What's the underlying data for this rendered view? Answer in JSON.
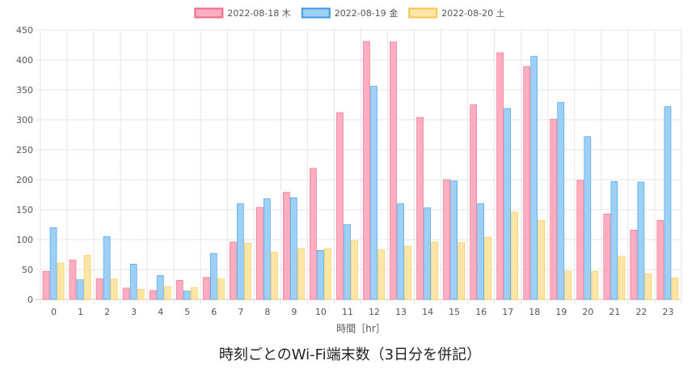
{
  "caption": "時刻ごとのWi-Fi端末数（3日分を併記）",
  "chart_data": {
    "type": "bar",
    "title": "",
    "xlabel": "時間［hr］",
    "ylabel": "",
    "ylim": [
      0,
      450
    ],
    "yticks": [
      0,
      50,
      100,
      150,
      200,
      250,
      300,
      350,
      400,
      450
    ],
    "grid": true,
    "legend_position": "top-center",
    "categories": [
      "0",
      "1",
      "2",
      "3",
      "4",
      "5",
      "6",
      "7",
      "8",
      "9",
      "10",
      "11",
      "12",
      "13",
      "14",
      "15",
      "16",
      "17",
      "18",
      "19",
      "20",
      "21",
      "22",
      "23"
    ],
    "series": [
      {
        "name": "2022-08-18 木",
        "fill": "#ffadc1",
        "stroke": "#f06a8a",
        "values": [
          47,
          66,
          35,
          19,
          15,
          32,
          37,
          96,
          154,
          179,
          219,
          312,
          431,
          430,
          304,
          200,
          325,
          412,
          389,
          301,
          199,
          143,
          116,
          132
        ]
      },
      {
        "name": "2022-08-19 金",
        "fill": "#9ed0f5",
        "stroke": "#3d9be3",
        "values": [
          120,
          33,
          105,
          59,
          40,
          14,
          77,
          160,
          168,
          170,
          82,
          125,
          356,
          160,
          153,
          198,
          160,
          319,
          406,
          329,
          272,
          197,
          196,
          322
        ]
      },
      {
        "name": "2022-08-20 土",
        "fill": "#ffe6a6",
        "stroke": "#f5c74e",
        "values": [
          61,
          74,
          34,
          17,
          21,
          20,
          35,
          94,
          79,
          85,
          85,
          98,
          83,
          89,
          96,
          95,
          104,
          146,
          132,
          47,
          47,
          72,
          43,
          36
        ]
      }
    ]
  }
}
